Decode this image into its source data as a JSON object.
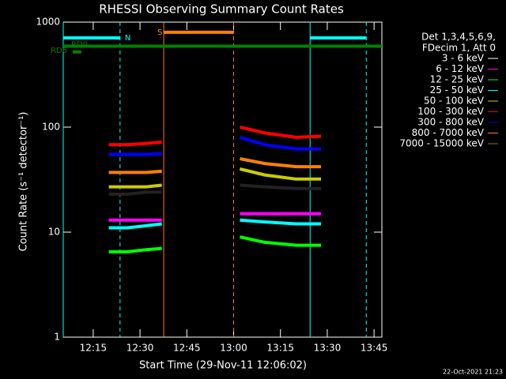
{
  "chart_data": {
    "type": "line",
    "title": "RHESSI Observing Summary Count Rates",
    "xlabel": "Start Time (29-Nov-11 12:06:02)",
    "ylabel": "Count Rate (s⁻¹ detector⁻¹)",
    "footer": "22-Oct-2021 21:23",
    "legend_title": [
      "Det 1,3,4,5,6,9,",
      "FDecim 1, Att 0"
    ],
    "log_y": true,
    "xlim": [
      725.4,
      827.5
    ],
    "xticks": [
      {
        "value": 735,
        "label": "12:15"
      },
      {
        "value": 750,
        "label": "12:30"
      },
      {
        "value": 765,
        "label": "12:45"
      },
      {
        "value": 780,
        "label": "13:00"
      },
      {
        "value": 795,
        "label": "13:15"
      },
      {
        "value": 810,
        "label": "13:30"
      },
      {
        "value": 825,
        "label": "13:45"
      }
    ],
    "ylim": [
      1,
      1000
    ],
    "yticks": [
      1,
      10,
      100,
      1000
    ],
    "x": [
      740,
      746,
      752,
      757,
      768,
      782,
      790,
      800,
      808
    ],
    "series": [
      {
        "name": "3 - 6 keV",
        "color": "#000000",
        "values": [
          23,
          23,
          24,
          24,
          null,
          28,
          27,
          26,
          26
        ]
      },
      {
        "name": "6 - 12 keV",
        "color": "#ff00ff",
        "values": [
          13,
          13,
          13,
          13,
          null,
          15,
          15,
          15,
          15
        ]
      },
      {
        "name": "12 - 25 keV",
        "color": "#00ff00",
        "values": [
          6.5,
          6.5,
          6.8,
          7,
          null,
          9,
          8,
          7.5,
          7.5
        ]
      },
      {
        "name": "25 - 50 keV",
        "color": "#00ffff",
        "values": [
          11,
          11,
          11.5,
          12,
          null,
          13,
          12.5,
          12,
          12
        ]
      },
      {
        "name": "50 - 100 keV",
        "color": "#cccc00",
        "values": [
          27,
          27,
          27,
          28,
          null,
          40,
          35,
          32,
          32
        ]
      },
      {
        "name": "100 - 300 keV",
        "color": "#ff0000",
        "values": [
          68,
          68,
          70,
          72,
          null,
          100,
          88,
          80,
          82
        ]
      },
      {
        "name": "300 - 800 keV",
        "color": "#0000ff",
        "values": [
          55,
          55,
          55,
          56,
          null,
          80,
          68,
          62,
          62
        ]
      },
      {
        "name": "800 - 7000 keV",
        "color": "#ff8000",
        "values": [
          37,
          37,
          37,
          38,
          null,
          50,
          45,
          42,
          42
        ]
      },
      {
        "name": "7000 - 15000 keV",
        "color": "#808000",
        "values": [
          null,
          null,
          null,
          null,
          null,
          null,
          null,
          null,
          null
        ]
      }
    ],
    "annotations": [
      {
        "label": "N",
        "color": "#00ffff",
        "y": 708,
        "intervals": [
          [
            725.4,
            743.6
          ],
          [
            804.5,
            822.5
          ]
        ],
        "boundaries": true
      },
      {
        "label": "S",
        "color": "#ff8000",
        "y": 800,
        "intervals": [
          [
            757.6,
            780
          ]
        ],
        "boundaries": true
      },
      {
        "label": "RD0",
        "color": "#008000",
        "y": 590,
        "intervals": [
          [
            725.4,
            827.5
          ]
        ],
        "boundaries": false
      },
      {
        "label": "RD6",
        "color": "#008000",
        "y": 520,
        "intervals": [
          [
            728.4,
            731.2
          ]
        ],
        "boundaries": false
      }
    ]
  }
}
